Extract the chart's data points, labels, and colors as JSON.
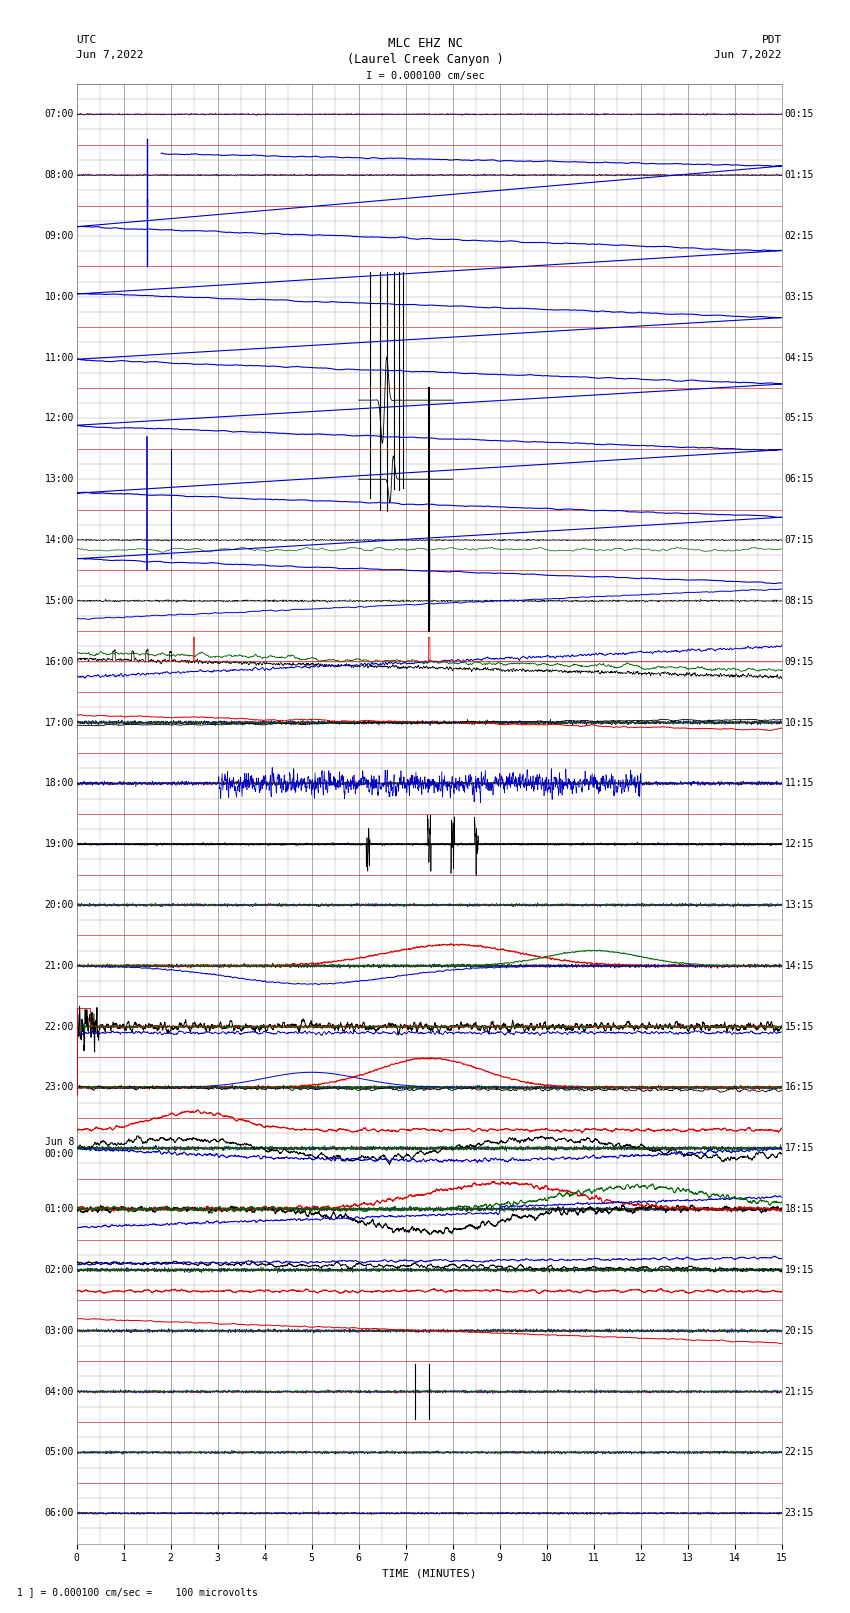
{
  "title_line1": "MLC EHZ NC",
  "title_line2": "(Laurel Creek Canyon )",
  "scale_label": "I = 0.000100 cm/sec",
  "utc_label": "UTC",
  "pdt_label": "PDT",
  "date_left": "Jun 7,2022",
  "date_right": "Jun 7,2022",
  "xlabel": "TIME (MINUTES)",
  "footer": "1 ] = 0.000100 cm/sec =    100 microvolts",
  "left_times": [
    "07:00",
    "08:00",
    "09:00",
    "10:00",
    "11:00",
    "12:00",
    "13:00",
    "14:00",
    "15:00",
    "16:00",
    "17:00",
    "18:00",
    "19:00",
    "20:00",
    "21:00",
    "22:00",
    "23:00",
    "Jun 8\n00:00",
    "01:00",
    "02:00",
    "03:00",
    "04:00",
    "05:00",
    "06:00"
  ],
  "right_times": [
    "00:15",
    "01:15",
    "02:15",
    "03:15",
    "04:15",
    "05:15",
    "06:15",
    "07:15",
    "08:15",
    "09:15",
    "10:15",
    "11:15",
    "12:15",
    "13:15",
    "14:15",
    "15:15",
    "16:15",
    "17:15",
    "18:15",
    "19:15",
    "20:15",
    "21:15",
    "22:15",
    "23:15"
  ],
  "n_rows": 24,
  "x_min": 0,
  "x_max": 15,
  "bg_color": "#ffffff",
  "minor_grid_color": "#aaaaaa",
  "major_grid_color": "#888888",
  "red_line_color": "#cc0000",
  "line_color_black": "#000000",
  "line_color_blue": "#0000cc",
  "line_color_red": "#dd0000",
  "line_color_green": "#006600",
  "title_fontsize": 9,
  "label_fontsize": 8,
  "tick_fontsize": 7
}
